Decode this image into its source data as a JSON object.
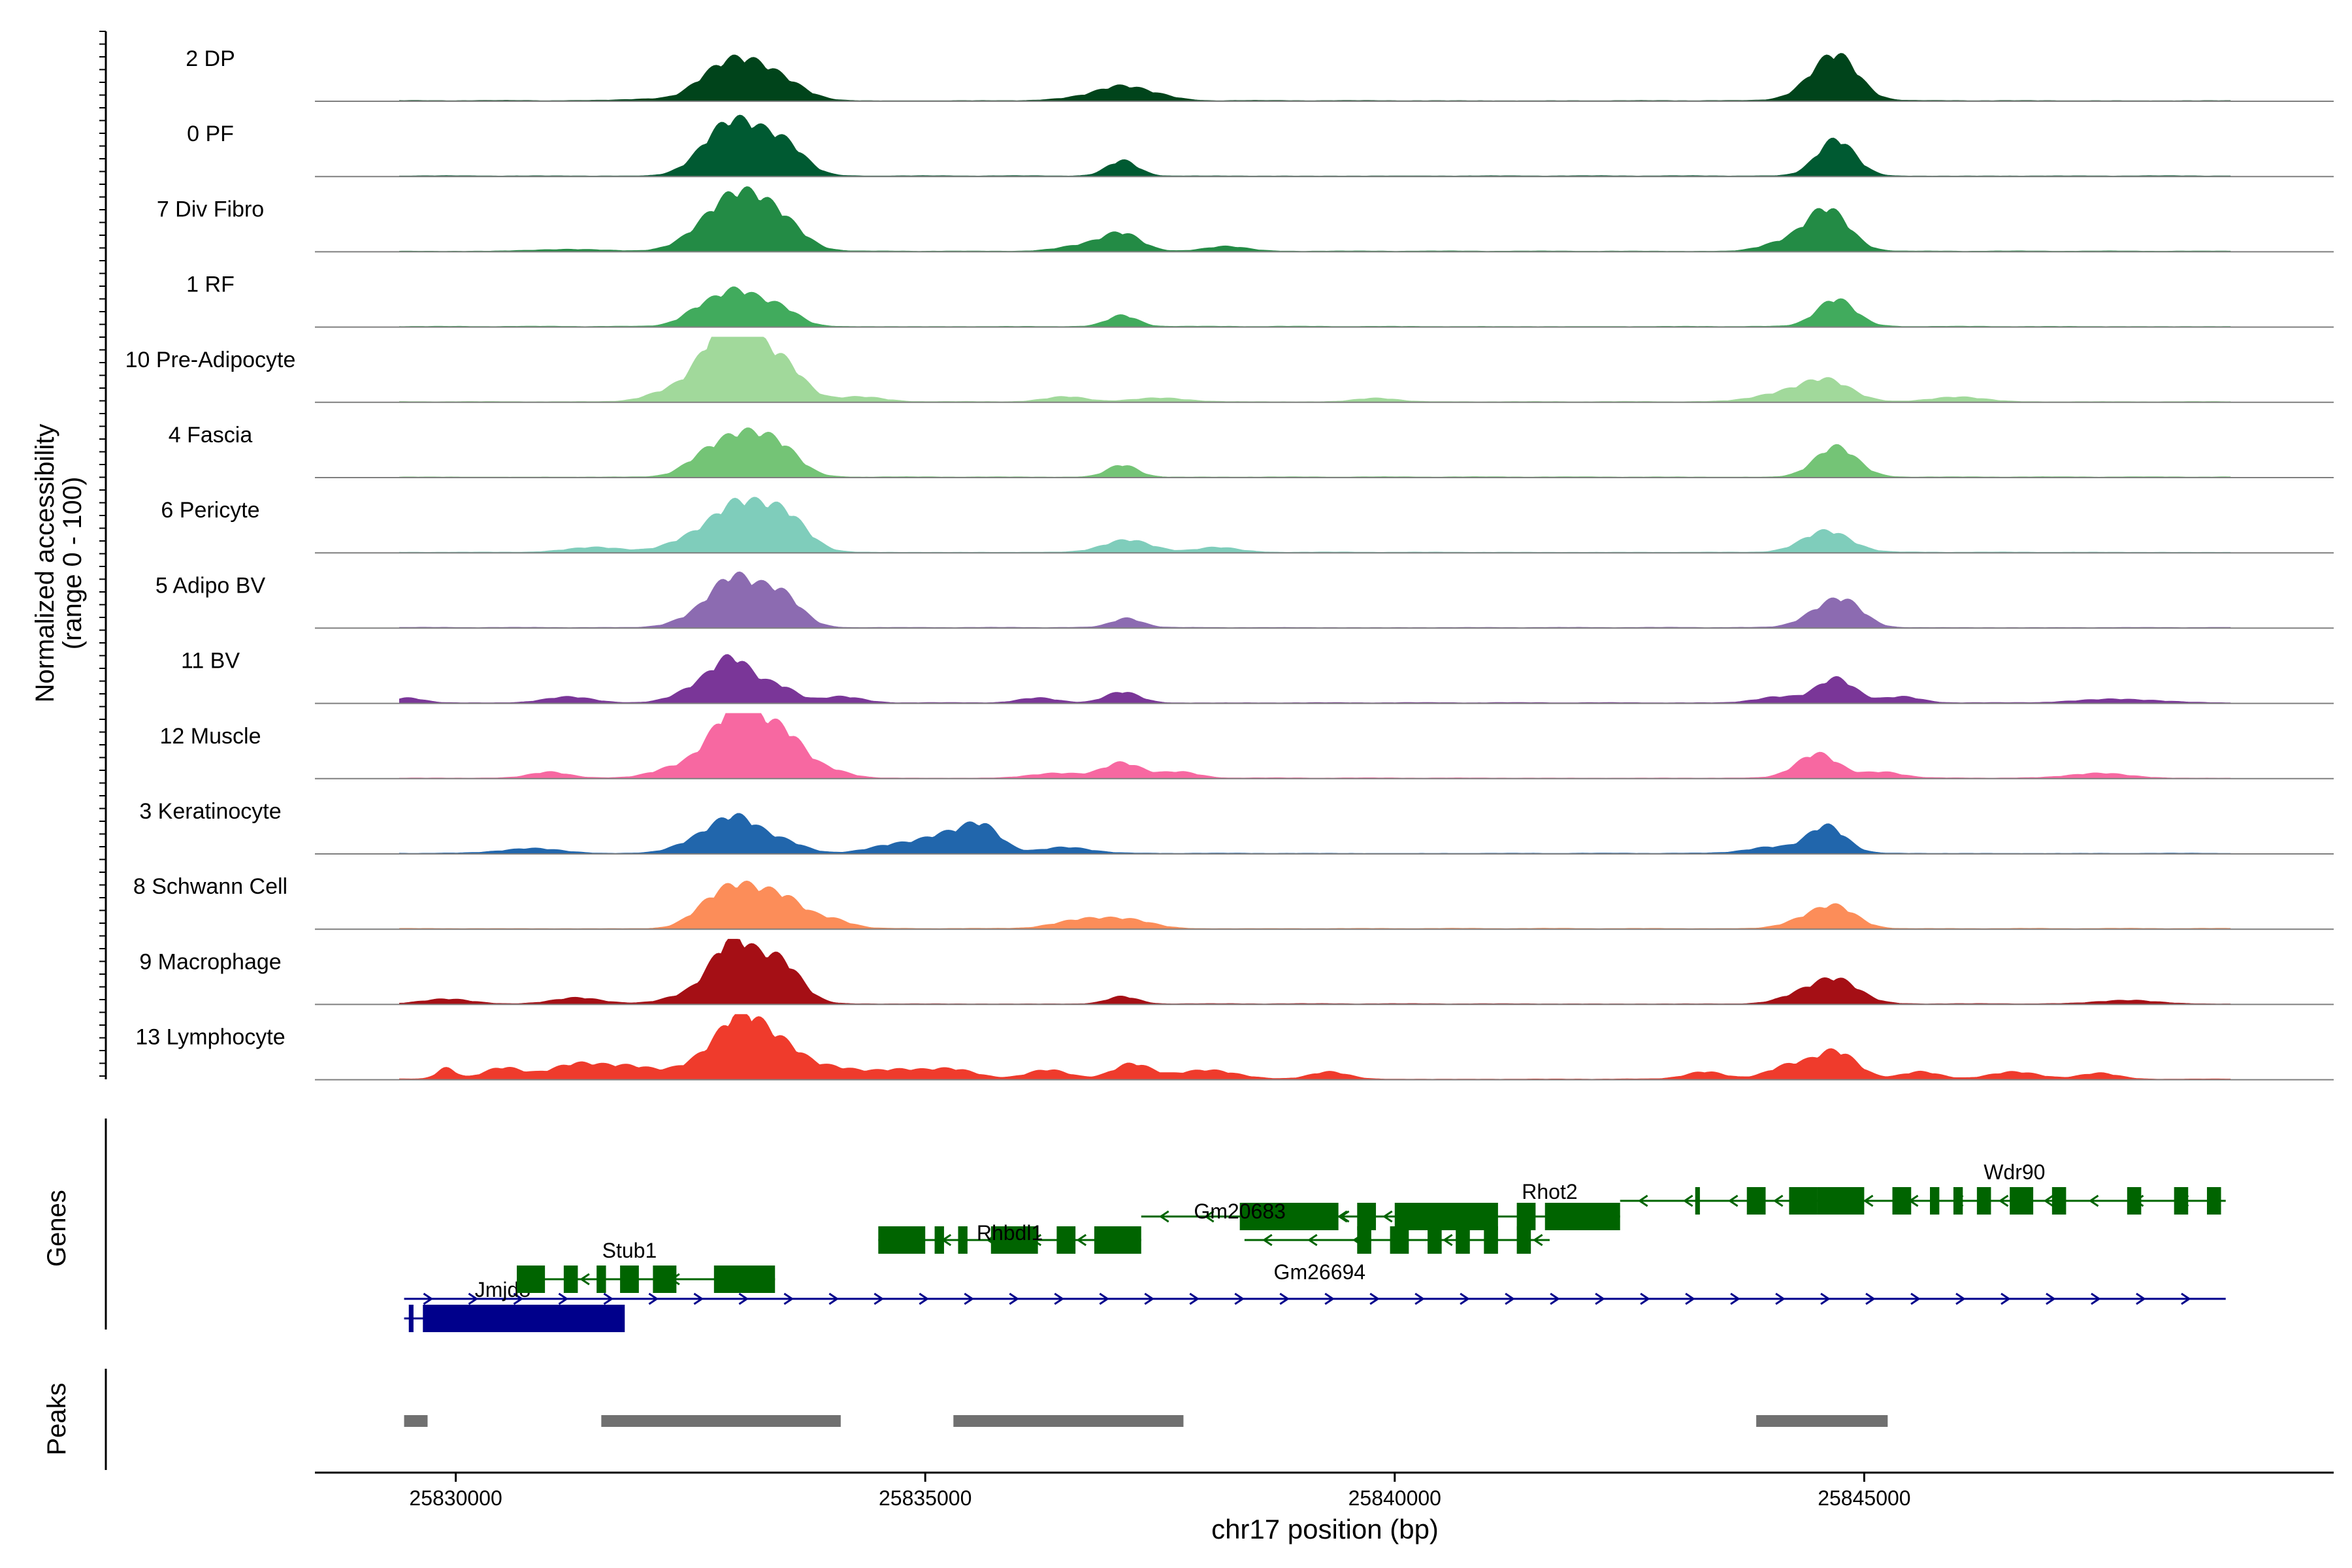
{
  "chart_data": {
    "type": "area",
    "title": "",
    "xlabel": "chr17 position (bp)",
    "ylabel": "Normalized accessibility",
    "ylabel_sub": "(range 0 - 100)",
    "ylim": [
      0,
      100
    ],
    "xlim": [
      25828500,
      25850000
    ],
    "x_ticks": [
      {
        "value": 25830000,
        "label": "25830000"
      },
      {
        "value": 25835000,
        "label": "25835000"
      },
      {
        "value": 25840000,
        "label": "25840000"
      },
      {
        "value": 25845000,
        "label": "25845000"
      }
    ],
    "tracks": [
      {
        "name": "2 DP",
        "color": "#00441b",
        "peaks": [
          [
            25832100,
            3,
            260
          ],
          [
            25832650,
            18,
            200
          ],
          [
            25833000,
            60,
            260
          ],
          [
            25833450,
            32,
            260
          ],
          [
            25836700,
            5,
            280
          ],
          [
            25837100,
            22,
            240
          ],
          [
            25837500,
            6,
            200
          ],
          [
            25844350,
            8,
            200
          ],
          [
            25844700,
            75,
            230
          ]
        ]
      },
      {
        "name": "0 PF",
        "color": "#005a32",
        "peaks": [
          [
            25832500,
            8,
            200
          ],
          [
            25832750,
            35,
            200
          ],
          [
            25833050,
            75,
            240
          ],
          [
            25833500,
            50,
            220
          ],
          [
            25837100,
            25,
            160
          ],
          [
            25844700,
            60,
            200
          ]
        ]
      },
      {
        "name": "7 Div Fibro",
        "color": "#238b45",
        "peaks": [
          [
            25831200,
            3,
            400
          ],
          [
            25832600,
            18,
            250
          ],
          [
            25833000,
            85,
            280
          ],
          [
            25833450,
            45,
            250
          ],
          [
            25836700,
            10,
            260
          ],
          [
            25837100,
            28,
            200
          ],
          [
            25838200,
            8,
            220
          ],
          [
            25844100,
            12,
            220
          ],
          [
            25844600,
            70,
            230
          ]
        ]
      },
      {
        "name": "1 RF",
        "color": "#41ab5d",
        "peaks": [
          [
            25832600,
            25,
            200
          ],
          [
            25833000,
            55,
            220
          ],
          [
            25833450,
            30,
            200
          ],
          [
            25837100,
            18,
            160
          ],
          [
            25844700,
            45,
            200
          ]
        ]
      },
      {
        "name": "10 Pre-Adipocyte",
        "color": "#a1d99b",
        "peaks": [
          [
            25832300,
            18,
            250
          ],
          [
            25832750,
            65,
            220
          ],
          [
            25833050,
            100,
            240
          ],
          [
            25833500,
            55,
            220
          ],
          [
            25834300,
            8,
            250
          ],
          [
            25836500,
            8,
            220
          ],
          [
            25837500,
            6,
            280
          ],
          [
            25839800,
            6,
            220
          ],
          [
            25844100,
            12,
            280
          ],
          [
            25844600,
            35,
            260
          ],
          [
            25846000,
            8,
            280
          ]
        ]
      },
      {
        "name": "4 Fascia",
        "color": "#74c476",
        "peaks": [
          [
            25832650,
            30,
            220
          ],
          [
            25833050,
            60,
            240
          ],
          [
            25833450,
            45,
            220
          ],
          [
            25837100,
            20,
            160
          ],
          [
            25844700,
            50,
            220
          ]
        ]
      },
      {
        "name": "6 Pericyte",
        "color": "#7fcdbb",
        "peaks": [
          [
            25831500,
            8,
            300
          ],
          [
            25832500,
            20,
            250
          ],
          [
            25833000,
            75,
            260
          ],
          [
            25833500,
            60,
            240
          ],
          [
            25837150,
            20,
            250
          ],
          [
            25838100,
            8,
            220
          ],
          [
            25844600,
            35,
            250
          ]
        ]
      },
      {
        "name": "5 Adipo BV",
        "color": "#8c6bb1",
        "peaks": [
          [
            25832500,
            12,
            220
          ],
          [
            25832950,
            80,
            240
          ],
          [
            25833450,
            55,
            220
          ],
          [
            25837150,
            15,
            160
          ],
          [
            25844500,
            20,
            200
          ],
          [
            25844800,
            40,
            200
          ]
        ]
      },
      {
        "name": "11 BV",
        "color": "#7a3698",
        "peaks": [
          [
            25829500,
            8,
            160
          ],
          [
            25831200,
            10,
            250
          ],
          [
            25832550,
            20,
            230
          ],
          [
            25832950,
            70,
            220
          ],
          [
            25833450,
            25,
            180
          ],
          [
            25834100,
            10,
            220
          ],
          [
            25836200,
            8,
            200
          ],
          [
            25837100,
            18,
            180
          ],
          [
            25844100,
            10,
            240
          ],
          [
            25844700,
            40,
            200
          ],
          [
            25845400,
            10,
            200
          ],
          [
            25847700,
            6,
            400
          ]
        ]
      },
      {
        "name": "12 Muscle",
        "color": "#f768a1",
        "peaks": [
          [
            25831000,
            10,
            200
          ],
          [
            25832300,
            15,
            230
          ],
          [
            25832750,
            40,
            220
          ],
          [
            25833050,
            100,
            220
          ],
          [
            25833500,
            70,
            220
          ],
          [
            25834000,
            12,
            200
          ],
          [
            25836400,
            8,
            280
          ],
          [
            25837100,
            25,
            200
          ],
          [
            25837700,
            10,
            200
          ],
          [
            25844500,
            40,
            220
          ],
          [
            25845200,
            10,
            200
          ],
          [
            25847500,
            8,
            300
          ]
        ]
      },
      {
        "name": "3 Keratinocyte",
        "color": "#2166ac",
        "peaks": [
          [
            25830800,
            8,
            300
          ],
          [
            25832600,
            20,
            250
          ],
          [
            25833000,
            55,
            240
          ],
          [
            25833500,
            18,
            220
          ],
          [
            25834700,
            15,
            280
          ],
          [
            25835200,
            25,
            220
          ],
          [
            25835600,
            45,
            200
          ],
          [
            25836500,
            10,
            250
          ],
          [
            25844000,
            10,
            250
          ],
          [
            25844600,
            45,
            200
          ]
        ]
      },
      {
        "name": "8 Schwann Cell",
        "color": "#fc8d59",
        "peaks": [
          [
            25832700,
            30,
            220
          ],
          [
            25833050,
            60,
            240
          ],
          [
            25833500,
            45,
            220
          ],
          [
            25834000,
            15,
            200
          ],
          [
            25836700,
            15,
            300
          ],
          [
            25837200,
            12,
            250
          ],
          [
            25844350,
            12,
            220
          ],
          [
            25844700,
            35,
            220
          ]
        ]
      },
      {
        "name": "9 Macrophage",
        "color": "#a50f15",
        "peaks": [
          [
            25829900,
            8,
            260
          ],
          [
            25831300,
            10,
            250
          ],
          [
            25832500,
            15,
            250
          ],
          [
            25832950,
            100,
            220
          ],
          [
            25833450,
            70,
            220
          ],
          [
            25837100,
            12,
            160
          ],
          [
            25844300,
            12,
            220
          ],
          [
            25844700,
            40,
            240
          ],
          [
            25847800,
            6,
            300
          ]
        ]
      },
      {
        "name": "13 Lymphocyte",
        "color": "#ef3b2c",
        "peaks": [
          [
            25829900,
            18,
            100
          ],
          [
            25830500,
            18,
            200
          ],
          [
            25831300,
            25,
            300
          ],
          [
            25831900,
            18,
            250
          ],
          [
            25832600,
            25,
            260
          ],
          [
            25833050,
            100,
            240
          ],
          [
            25833500,
            45,
            220
          ],
          [
            25834000,
            18,
            260
          ],
          [
            25834700,
            15,
            300
          ],
          [
            25835300,
            15,
            250
          ],
          [
            25836300,
            15,
            220
          ],
          [
            25837200,
            25,
            200
          ],
          [
            25838000,
            15,
            300
          ],
          [
            25839300,
            12,
            200
          ],
          [
            25843300,
            12,
            200
          ],
          [
            25844200,
            22,
            220
          ],
          [
            25844700,
            45,
            220
          ],
          [
            25845600,
            12,
            200
          ],
          [
            25846600,
            12,
            260
          ],
          [
            25847500,
            10,
            200
          ]
        ]
      }
    ],
    "genes": [
      {
        "name": "Jmjd8",
        "strand": "+",
        "color": "#00008b",
        "start": 25829450,
        "end": 25848850,
        "label_x": 25830500,
        "exons": [
          [
            25829500,
            25829550
          ],
          [
            25829650,
            25831800
          ]
        ]
      },
      {
        "name": "Stub1",
        "strand": "-",
        "color": "#006400",
        "start": 25830650,
        "end": 25833400,
        "label_x": 25831850,
        "exons": [
          [
            25830650,
            25830950
          ],
          [
            25831150,
            25831300
          ],
          [
            25831500,
            25831600
          ],
          [
            25831750,
            25831950
          ],
          [
            25832100,
            25832350
          ],
          [
            25832750,
            25833400
          ]
        ]
      },
      {
        "name": "Rhbdl1",
        "strand": "-",
        "color": "#006400",
        "start": 25834500,
        "end": 25837300,
        "label_x": 25835900,
        "exons": [
          [
            25834500,
            25835000
          ],
          [
            25835100,
            25835200
          ],
          [
            25835350,
            25835450
          ],
          [
            25835700,
            25836200
          ],
          [
            25836400,
            25836600
          ],
          [
            25836800,
            25837300
          ]
        ]
      },
      {
        "name": "Gm20683",
        "strand": "-",
        "color": "#006400",
        "start": 25837300,
        "end": 25839500,
        "label_x": 25838350,
        "exons": [
          [
            25838350,
            25839400
          ]
        ]
      },
      {
        "name": "Gm26694",
        "strand": "-",
        "color": "#006400",
        "start": 25838400,
        "end": 25841650,
        "label_x": 25839200,
        "exons": [
          [
            25839600,
            25839750
          ],
          [
            25839950,
            25840150
          ],
          [
            25840350,
            25840500
          ],
          [
            25840650,
            25840800
          ],
          [
            25840950,
            25841100
          ],
          [
            25841300,
            25841450
          ]
        ]
      },
      {
        "name": "Rhot2",
        "strand": "-",
        "color": "#006400",
        "start": 25839200,
        "end": 25842400,
        "label_x": 25841650,
        "exons": [
          [
            25839250,
            25839400
          ],
          [
            25839600,
            25839800
          ],
          [
            25840000,
            25841100
          ],
          [
            25841300,
            25841500
          ],
          [
            25841600,
            25842400
          ]
        ]
      },
      {
        "name": "Wdr90",
        "strand": "-",
        "color": "#006400",
        "start": 25842400,
        "end": 25848850,
        "label_x": 25846600,
        "exons": [
          [
            25843200,
            25843250
          ],
          [
            25843750,
            25843950
          ],
          [
            25844200,
            25844500
          ],
          [
            25844500,
            25845000
          ],
          [
            25845300,
            25845500
          ],
          [
            25845700,
            25845800
          ],
          [
            25845950,
            25846050
          ],
          [
            25846200,
            25846350
          ],
          [
            25846550,
            25846800
          ],
          [
            25847000,
            25847150
          ],
          [
            25847800,
            25847950
          ],
          [
            25848300,
            25848450
          ],
          [
            25848650,
            25848800
          ]
        ]
      }
    ],
    "peaks": [
      [
        25829450,
        25829700
      ],
      [
        25831550,
        25834100
      ],
      [
        25835300,
        25837750
      ],
      [
        25843850,
        25845250
      ]
    ],
    "panel_labels": {
      "genes": "Genes",
      "peaks": "Peaks"
    }
  }
}
